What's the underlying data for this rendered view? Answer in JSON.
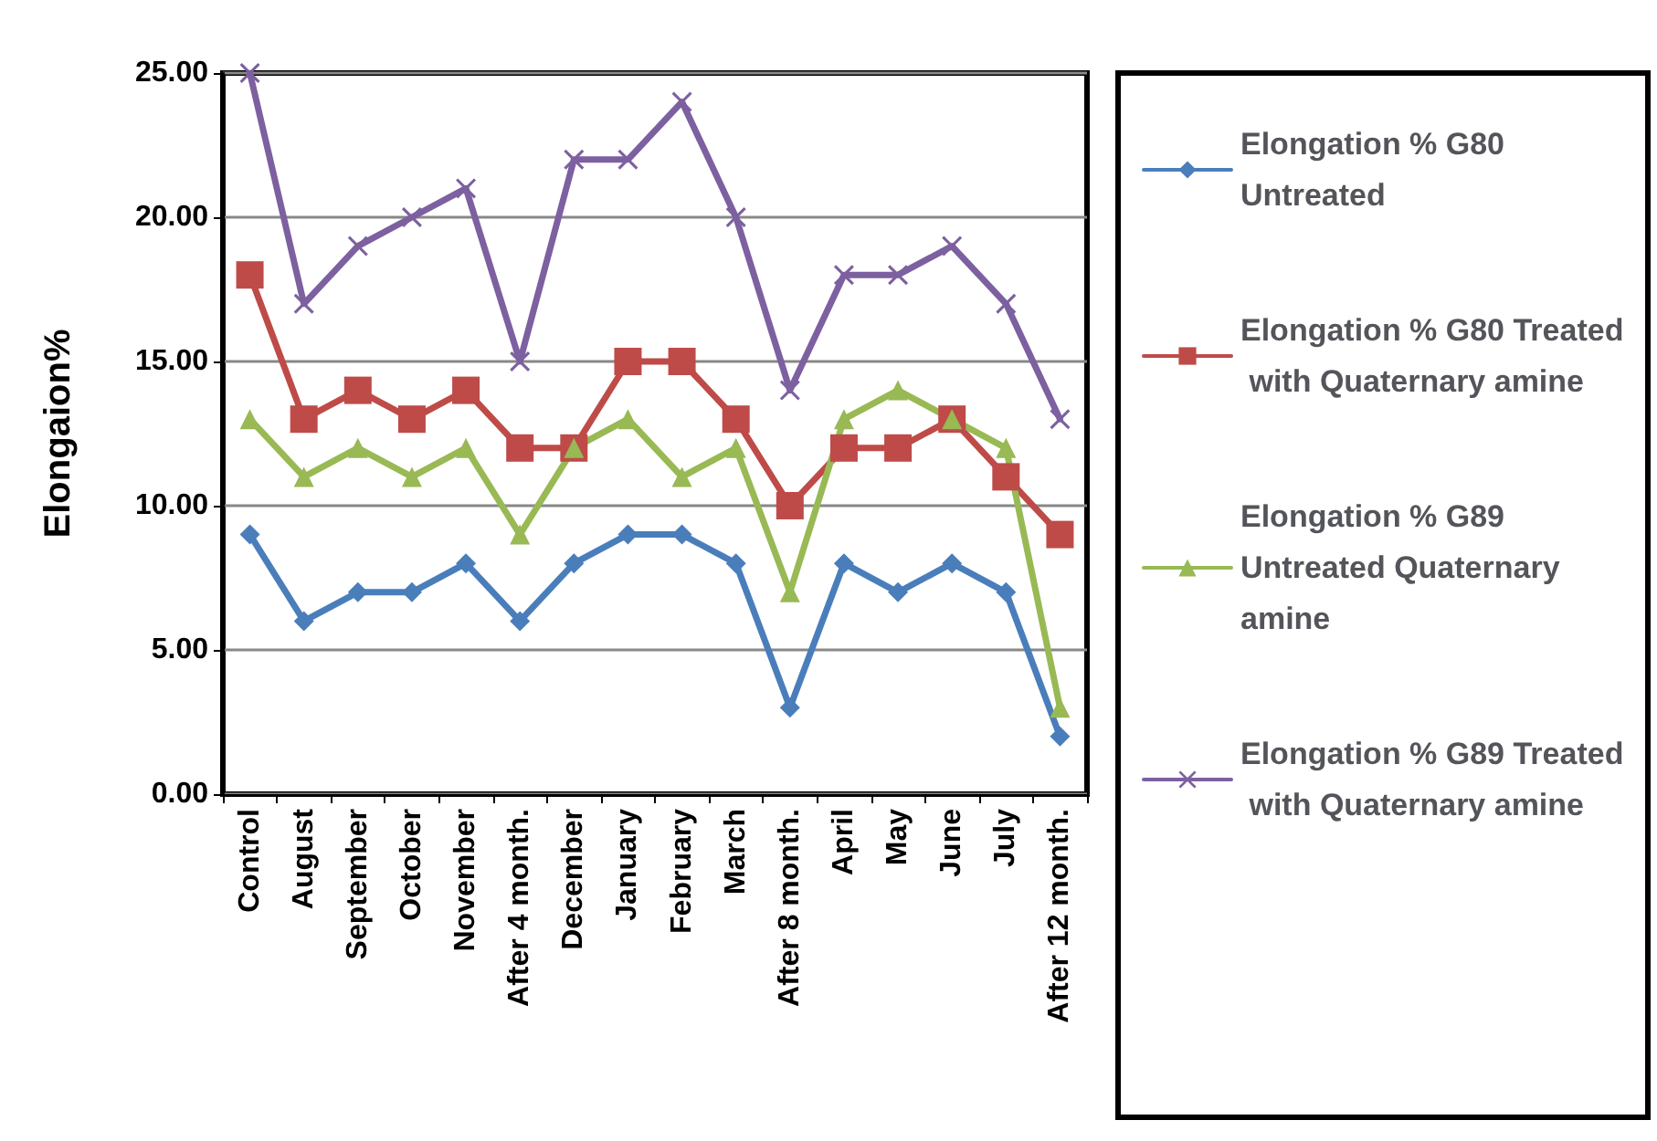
{
  "chart_data": {
    "type": "line",
    "ylabel": "Elongaion%",
    "categories": [
      "Control",
      "August",
      "September",
      "October",
      "November",
      "After 4 month.",
      "December",
      "January",
      "February",
      "March",
      "After 8 month.",
      "April",
      "May",
      "June",
      "July",
      "After 12 month."
    ],
    "series": [
      {
        "name": "Elongation % G80 Untreated",
        "color": "#4a7ebb",
        "marker": "diamond",
        "values": [
          9,
          6,
          7,
          7,
          8,
          6,
          8,
          9,
          9,
          8,
          3,
          8,
          7,
          8,
          7,
          2
        ]
      },
      {
        "name": "Elongation % G80 Treated with Quaternary amine",
        "color": "#be4b48",
        "marker": "square",
        "values": [
          18,
          13,
          14,
          13,
          14,
          12,
          12,
          15,
          15,
          13,
          10,
          12,
          12,
          13,
          11,
          9
        ]
      },
      {
        "name": "Elongation % G89 Untreated Quaternary amine",
        "color": "#98b954",
        "marker": "triangle",
        "values": [
          13,
          11,
          12,
          11,
          12,
          9,
          12,
          13,
          11,
          12,
          7,
          13,
          14,
          13,
          12,
          3
        ]
      },
      {
        "name": "Elongation % G89 Treated with Quaternary amine",
        "color": "#7d60a0",
        "marker": "cross",
        "values": [
          25,
          17,
          19,
          20,
          21,
          15,
          22,
          22,
          24,
          20,
          14,
          18,
          18,
          19,
          17,
          13
        ]
      }
    ],
    "ylim": [
      0,
      25
    ],
    "yticks": [
      {
        "value": 0,
        "label": "0.00"
      },
      {
        "value": 5,
        "label": "5.00"
      },
      {
        "value": 10,
        "label": "10.00"
      },
      {
        "value": 15,
        "label": "15.00"
      },
      {
        "value": 20,
        "label": "20.00"
      },
      {
        "value": 25,
        "label": "25.00"
      }
    ],
    "grid": "y",
    "legend": "right",
    "line_style": "solid"
  }
}
